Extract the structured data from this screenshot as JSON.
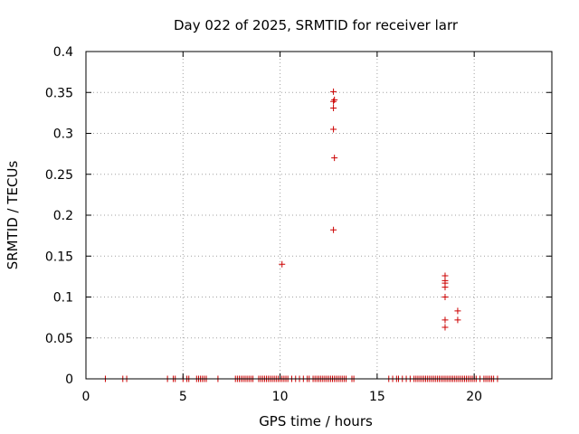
{
  "chart_data": {
    "type": "scatter",
    "title": "Day 022 of 2025, SRMTID for receiver larr",
    "xlabel": "GPS time / hours",
    "ylabel": "SRMTID / TECUs",
    "xlim": [
      0,
      24
    ],
    "ylim": [
      0,
      0.4
    ],
    "xticks": [
      0,
      5,
      10,
      15,
      20
    ],
    "xtick_labels": [
      "0",
      "5",
      "10",
      "15",
      "20"
    ],
    "yticks": [
      0,
      0.05,
      0.1,
      0.15,
      0.2,
      0.25,
      0.3,
      0.35,
      0.4
    ],
    "ytick_labels": [
      "0",
      "0.05",
      "0.1",
      "0.15",
      "0.2",
      "0.25",
      "0.3",
      "0.35",
      "0.4"
    ],
    "grid": true,
    "marker": "+",
    "marker_color": "#cc0000",
    "series": [
      {
        "name": "SRMTID",
        "points": [
          [
            1.0,
            0
          ],
          [
            1.9,
            0
          ],
          [
            2.1,
            0
          ],
          [
            4.2,
            0
          ],
          [
            4.5,
            0
          ],
          [
            4.6,
            0
          ],
          [
            5.0,
            0
          ],
          [
            5.2,
            0
          ],
          [
            5.3,
            0
          ],
          [
            5.7,
            0
          ],
          [
            5.8,
            0
          ],
          [
            5.9,
            0
          ],
          [
            6.0,
            0
          ],
          [
            6.1,
            0
          ],
          [
            6.2,
            0
          ],
          [
            6.8,
            0
          ],
          [
            7.7,
            0
          ],
          [
            7.8,
            0
          ],
          [
            7.9,
            0
          ],
          [
            8.0,
            0
          ],
          [
            8.1,
            0
          ],
          [
            8.2,
            0
          ],
          [
            8.3,
            0
          ],
          [
            8.4,
            0
          ],
          [
            8.5,
            0
          ],
          [
            8.6,
            0
          ],
          [
            8.9,
            0
          ],
          [
            9.0,
            0
          ],
          [
            9.1,
            0
          ],
          [
            9.2,
            0
          ],
          [
            9.3,
            0
          ],
          [
            9.4,
            0
          ],
          [
            9.5,
            0
          ],
          [
            9.6,
            0
          ],
          [
            9.7,
            0
          ],
          [
            9.8,
            0
          ],
          [
            9.9,
            0
          ],
          [
            10.0,
            0
          ],
          [
            10.1,
            0
          ],
          [
            10.2,
            0
          ],
          [
            10.3,
            0
          ],
          [
            10.4,
            0
          ],
          [
            10.6,
            0
          ],
          [
            10.8,
            0
          ],
          [
            11.0,
            0
          ],
          [
            11.2,
            0
          ],
          [
            11.4,
            0
          ],
          [
            11.5,
            0
          ],
          [
            11.7,
            0
          ],
          [
            11.8,
            0
          ],
          [
            11.9,
            0
          ],
          [
            12.0,
            0
          ],
          [
            12.1,
            0
          ],
          [
            12.2,
            0
          ],
          [
            12.3,
            0
          ],
          [
            12.4,
            0
          ],
          [
            12.5,
            0
          ],
          [
            12.6,
            0
          ],
          [
            12.7,
            0
          ],
          [
            12.8,
            0
          ],
          [
            12.9,
            0
          ],
          [
            13.0,
            0
          ],
          [
            13.1,
            0
          ],
          [
            13.2,
            0
          ],
          [
            13.3,
            0
          ],
          [
            13.4,
            0
          ],
          [
            13.7,
            0
          ],
          [
            13.8,
            0
          ],
          [
            15.6,
            0
          ],
          [
            15.8,
            0
          ],
          [
            16.0,
            0
          ],
          [
            16.1,
            0
          ],
          [
            16.3,
            0
          ],
          [
            16.5,
            0
          ],
          [
            16.7,
            0
          ],
          [
            16.9,
            0
          ],
          [
            17.0,
            0
          ],
          [
            17.1,
            0
          ],
          [
            17.2,
            0
          ],
          [
            17.3,
            0
          ],
          [
            17.4,
            0
          ],
          [
            17.5,
            0
          ],
          [
            17.6,
            0
          ],
          [
            17.7,
            0
          ],
          [
            17.8,
            0
          ],
          [
            17.9,
            0
          ],
          [
            18.0,
            0
          ],
          [
            18.1,
            0
          ],
          [
            18.2,
            0
          ],
          [
            18.3,
            0
          ],
          [
            18.4,
            0
          ],
          [
            18.5,
            0
          ],
          [
            18.6,
            0
          ],
          [
            18.7,
            0
          ],
          [
            18.8,
            0
          ],
          [
            18.9,
            0
          ],
          [
            19.0,
            0
          ],
          [
            19.1,
            0
          ],
          [
            19.2,
            0
          ],
          [
            19.3,
            0
          ],
          [
            19.4,
            0
          ],
          [
            19.5,
            0
          ],
          [
            19.6,
            0
          ],
          [
            19.7,
            0
          ],
          [
            19.8,
            0
          ],
          [
            19.9,
            0
          ],
          [
            20.0,
            0
          ],
          [
            20.1,
            0
          ],
          [
            20.3,
            0
          ],
          [
            20.5,
            0
          ],
          [
            20.6,
            0
          ],
          [
            20.7,
            0
          ],
          [
            20.8,
            0
          ],
          [
            20.9,
            0
          ],
          [
            21.0,
            0
          ],
          [
            21.2,
            0
          ],
          [
            10.1,
            0.14
          ],
          [
            12.75,
            0.182
          ],
          [
            12.8,
            0.27
          ],
          [
            12.75,
            0.305
          ],
          [
            12.75,
            0.331
          ],
          [
            12.75,
            0.339
          ],
          [
            12.8,
            0.341
          ],
          [
            12.75,
            0.351
          ],
          [
            18.5,
            0.063
          ],
          [
            18.5,
            0.072
          ],
          [
            18.5,
            0.1
          ],
          [
            18.5,
            0.112
          ],
          [
            18.5,
            0.117
          ],
          [
            18.5,
            0.12
          ],
          [
            18.5,
            0.126
          ],
          [
            19.15,
            0.072
          ],
          [
            19.15,
            0.083
          ]
        ]
      }
    ]
  }
}
